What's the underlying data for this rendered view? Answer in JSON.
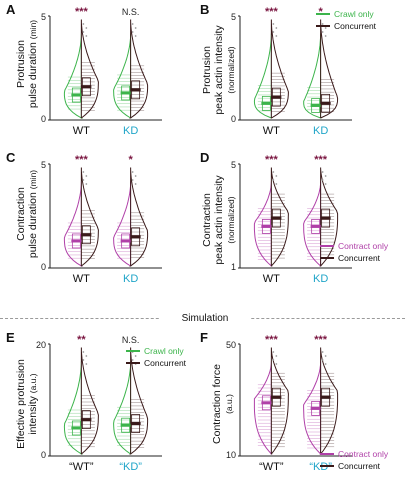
{
  "colors": {
    "crawl": "#3cb44b",
    "contract": "#b040a8",
    "concurrent": "#3a1a1a",
    "kd": "#1fa5c8",
    "sig": "#7a1540"
  },
  "section_label": "Simulation",
  "chart_data": [
    {
      "id": "A",
      "letter": "A",
      "type": "violin",
      "ylabel": "Protrusion",
      "ylabel2": "pulse duration",
      "ylabel_unit": "(min)",
      "categories": [
        "WT",
        "KD"
      ],
      "ylim": [
        0,
        5
      ],
      "yticks": [
        "0",
        "5"
      ],
      "significance": [
        "***",
        "N.S."
      ],
      "series": [
        {
          "medians": [
            1.2,
            1.3
          ]
        },
        {
          "medians": [
            1.6,
            1.45
          ]
        }
      ],
      "colors": [
        "crawl",
        "concurrent"
      ]
    },
    {
      "id": "B",
      "letter": "B",
      "type": "violin",
      "ylabel": "Protrusion",
      "ylabel2": "peak actin intensity",
      "ylabel_unit": "(normalized)",
      "categories": [
        "WT",
        "KD"
      ],
      "ylim": [
        0,
        5
      ],
      "yticks": [
        "0",
        "5"
      ],
      "significance": [
        "***",
        "*"
      ],
      "series": [
        {
          "name": "Crawl only",
          "medians": [
            0.8,
            0.7
          ]
        },
        {
          "name": "Concurrent",
          "medians": [
            1.1,
            0.8
          ]
        }
      ],
      "colors": [
        "crawl",
        "concurrent"
      ],
      "legend": "top-right"
    },
    {
      "id": "C",
      "letter": "C",
      "type": "violin",
      "ylabel": "Contraction",
      "ylabel2": "pulse duration",
      "ylabel_unit": "(min)",
      "categories": [
        "WT",
        "KD"
      ],
      "ylim": [
        0,
        5
      ],
      "yticks": [
        "0",
        "5"
      ],
      "significance": [
        "***",
        "*"
      ],
      "series": [
        {
          "medians": [
            1.3,
            1.3
          ]
        },
        {
          "medians": [
            1.6,
            1.5
          ]
        }
      ],
      "colors": [
        "contract",
        "concurrent"
      ]
    },
    {
      "id": "D",
      "letter": "D",
      "type": "violin",
      "ylabel": "Contraction",
      "ylabel2": "peak actin intensity",
      "ylabel_unit": "(normalized)",
      "categories": [
        "WT",
        "KD"
      ],
      "ylim": [
        0,
        5
      ],
      "yticks": [
        "1",
        "5"
      ],
      "significance": [
        "***",
        "***"
      ],
      "series": [
        {
          "name": "Contract only",
          "medians": [
            2.0,
            2.0
          ]
        },
        {
          "name": "Concurrent",
          "medians": [
            2.4,
            2.4
          ]
        }
      ],
      "colors": [
        "contract",
        "concurrent"
      ],
      "legend": "bottom-right"
    },
    {
      "id": "E",
      "letter": "E",
      "type": "violin",
      "ylabel": "Effective protrusion",
      "ylabel2": "intensity",
      "ylabel_unit": "(a.u.)",
      "categories": [
        "“WT”",
        "“KD”"
      ],
      "ylim": [
        0,
        20
      ],
      "yticks": [
        "0",
        "20"
      ],
      "significance": [
        "**",
        "N.S."
      ],
      "series": [
        {
          "name": "Crawl only",
          "medians": [
            5.0,
            5.5
          ]
        },
        {
          "name": "Concurrent",
          "medians": [
            6.5,
            5.8
          ]
        }
      ],
      "colors": [
        "crawl",
        "concurrent"
      ],
      "legend": "top-right"
    },
    {
      "id": "F",
      "letter": "F",
      "type": "violin",
      "ylabel": "Contraction force",
      "ylabel2": "",
      "ylabel_unit": "(a.u.)",
      "categories": [
        "“WT”",
        "“KD”"
      ],
      "ylim": [
        10,
        50
      ],
      "yticks": [
        "10",
        "50"
      ],
      "significance": [
        "***",
        "***"
      ],
      "series": [
        {
          "name": "Contract only",
          "medians": [
            29,
            27
          ]
        },
        {
          "name": "Concurrent",
          "medians": [
            31,
            31
          ]
        }
      ],
      "colors": [
        "contract",
        "concurrent"
      ],
      "legend": "bottom-right"
    }
  ]
}
